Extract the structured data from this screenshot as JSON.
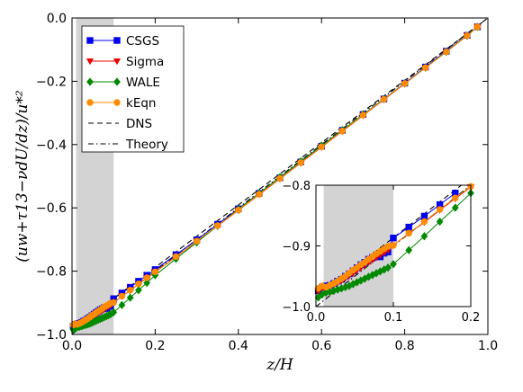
{
  "chart_data": [
    {
      "type": "line",
      "panel": "main",
      "title": "",
      "xlabel": "z/H",
      "ylabel": "(uw+τ13−νdU/dz)/u*²",
      "xlim": [
        0.0,
        1.0
      ],
      "ylim": [
        -1.0,
        0.0
      ],
      "xticks": [
        "0.0",
        "0.2",
        "0.4",
        "0.6",
        "0.8",
        "1.0"
      ],
      "yticks": [
        "−1.0",
        "−0.8",
        "−0.6",
        "−0.4",
        "−0.2",
        "0.0"
      ],
      "shaded_region": {
        "x": [
          0.01,
          0.1
        ],
        "color": "#d3d3d3"
      },
      "grid": false,
      "legend_position": "top-left",
      "series": [
        {
          "name": "CSGS",
          "color": "#0000ee",
          "marker": "square",
          "x": [
            0.003,
            0.008,
            0.013,
            0.018,
            0.023,
            0.028,
            0.033,
            0.038,
            0.043,
            0.048,
            0.053,
            0.058,
            0.063,
            0.068,
            0.073,
            0.078,
            0.083,
            0.088,
            0.093,
            0.1,
            0.12,
            0.14,
            0.16,
            0.18,
            0.2,
            0.25,
            0.3,
            0.35,
            0.4,
            0.45,
            0.5,
            0.55,
            0.6,
            0.65,
            0.7,
            0.75,
            0.8,
            0.85,
            0.9,
            0.95,
            0.975
          ],
          "y": [
            -0.974,
            -0.968,
            -0.966,
            -0.965,
            -0.962,
            -0.958,
            -0.955,
            -0.95,
            -0.946,
            -0.941,
            -0.936,
            -0.931,
            -0.927,
            -0.922,
            -0.919,
            -0.915,
            -0.918,
            -0.912,
            -0.91,
            -0.887,
            -0.869,
            -0.851,
            -0.832,
            -0.813,
            -0.795,
            -0.748,
            -0.701,
            -0.652,
            -0.603,
            -0.554,
            -0.505,
            -0.455,
            -0.405,
            -0.355,
            -0.305,
            -0.256,
            -0.206,
            -0.155,
            -0.105,
            -0.055,
            -0.028
          ]
        },
        {
          "name": "Sigma",
          "color": "#ee0000",
          "marker": "triangle-down",
          "x": [
            0.003,
            0.008,
            0.013,
            0.018,
            0.023,
            0.028,
            0.033,
            0.038,
            0.043,
            0.048,
            0.053,
            0.058,
            0.063,
            0.068,
            0.073,
            0.078,
            0.083,
            0.088,
            0.093,
            0.1,
            0.12,
            0.14,
            0.16,
            0.18,
            0.2,
            0.25,
            0.3,
            0.35,
            0.4,
            0.45,
            0.5,
            0.55,
            0.6,
            0.65,
            0.7,
            0.75,
            0.8,
            0.85,
            0.9,
            0.95,
            0.975
          ],
          "y": [
            -0.975,
            -0.97,
            -0.968,
            -0.967,
            -0.964,
            -0.96,
            -0.957,
            -0.953,
            -0.949,
            -0.945,
            -0.94,
            -0.936,
            -0.931,
            -0.927,
            -0.923,
            -0.919,
            -0.915,
            -0.911,
            -0.907,
            -0.899,
            -0.879,
            -0.861,
            -0.841,
            -0.822,
            -0.803,
            -0.755,
            -0.706,
            -0.657,
            -0.608,
            -0.558,
            -0.508,
            -0.458,
            -0.408,
            -0.358,
            -0.308,
            -0.258,
            -0.208,
            -0.157,
            -0.107,
            -0.056,
            -0.028
          ]
        },
        {
          "name": "WALE",
          "color": "#008a00",
          "marker": "diamond",
          "x": [
            0.003,
            0.008,
            0.013,
            0.018,
            0.023,
            0.028,
            0.033,
            0.038,
            0.043,
            0.048,
            0.053,
            0.058,
            0.063,
            0.068,
            0.073,
            0.078,
            0.083,
            0.088,
            0.093,
            0.1,
            0.12,
            0.14,
            0.16,
            0.18,
            0.2,
            0.25,
            0.3,
            0.35,
            0.4,
            0.45,
            0.5,
            0.55,
            0.6,
            0.65,
            0.7,
            0.75,
            0.8,
            0.85,
            0.9,
            0.95,
            0.975
          ],
          "y": [
            -0.985,
            -0.98,
            -0.977,
            -0.976,
            -0.974,
            -0.972,
            -0.97,
            -0.968,
            -0.966,
            -0.963,
            -0.96,
            -0.957,
            -0.954,
            -0.951,
            -0.948,
            -0.945,
            -0.942,
            -0.939,
            -0.936,
            -0.93,
            -0.907,
            -0.884,
            -0.86,
            -0.837,
            -0.813,
            -0.761,
            -0.709,
            -0.657,
            -0.604,
            -0.554,
            -0.503,
            -0.453,
            -0.403,
            -0.354,
            -0.305,
            -0.256,
            -0.207,
            -0.157,
            -0.107,
            -0.056,
            -0.028
          ]
        },
        {
          "name": "kEqn",
          "color": "#ff8c00",
          "marker": "circle",
          "x": [
            0.003,
            0.008,
            0.013,
            0.018,
            0.023,
            0.028,
            0.033,
            0.038,
            0.043,
            0.048,
            0.053,
            0.058,
            0.063,
            0.068,
            0.073,
            0.078,
            0.083,
            0.088,
            0.093,
            0.1,
            0.12,
            0.14,
            0.16,
            0.18,
            0.2,
            0.25,
            0.3,
            0.35,
            0.4,
            0.45,
            0.5,
            0.55,
            0.6,
            0.65,
            0.7,
            0.75,
            0.8,
            0.85,
            0.9,
            0.95,
            0.975
          ],
          "y": [
            -0.97,
            -0.966,
            -0.968,
            -0.965,
            -0.962,
            -0.958,
            -0.954,
            -0.95,
            -0.945,
            -0.94,
            -0.936,
            -0.931,
            -0.927,
            -0.922,
            -0.918,
            -0.913,
            -0.909,
            -0.905,
            -0.901,
            -0.899,
            -0.879,
            -0.86,
            -0.84,
            -0.821,
            -0.802,
            -0.754,
            -0.705,
            -0.656,
            -0.607,
            -0.557,
            -0.507,
            -0.457,
            -0.407,
            -0.357,
            -0.307,
            -0.257,
            -0.207,
            -0.157,
            -0.107,
            -0.056,
            -0.028
          ]
        },
        {
          "name": "DNS",
          "color": "#000000",
          "style": "dashed",
          "x": [
            0.0,
            1.0
          ],
          "y": [
            -0.985,
            0.0
          ]
        },
        {
          "name": "Theory",
          "color": "#000000",
          "style": "dashdot",
          "x": [
            0.0,
            1.0
          ],
          "y": [
            -1.0,
            0.0
          ]
        }
      ]
    },
    {
      "type": "line",
      "panel": "inset",
      "title": "",
      "xlim": [
        0.0,
        0.2
      ],
      "ylim": [
        -1.0,
        -0.8
      ],
      "xticks": [
        "0.0",
        "0.1",
        "0.2"
      ],
      "yticks": [
        "−1.0",
        "−0.9",
        "−0.8"
      ],
      "shaded_region": {
        "x": [
          0.01,
          0.1
        ],
        "color": "#d3d3d3"
      }
    }
  ]
}
